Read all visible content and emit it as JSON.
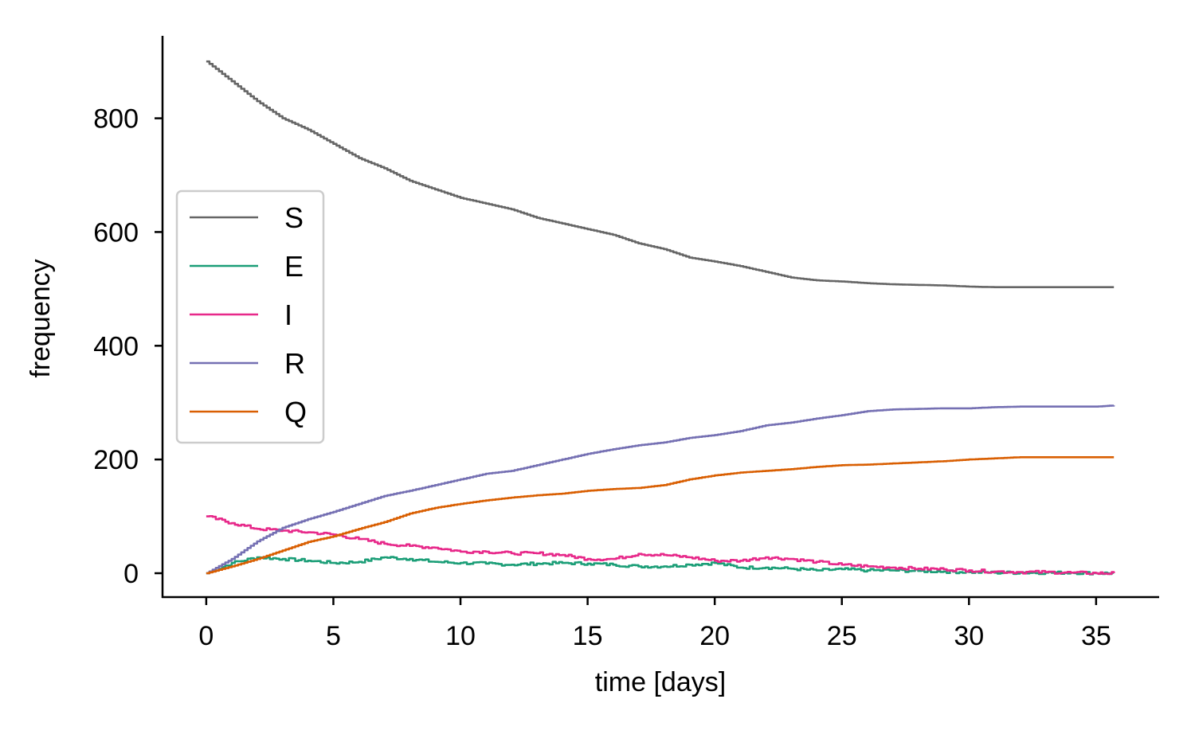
{
  "chart_data": {
    "type": "line",
    "title": "",
    "xlabel": "time [days]",
    "ylabel": "frequency",
    "xlim": [
      -1.72,
      37.48
    ],
    "ylim": [
      -42,
      945
    ],
    "xticks": [
      0,
      5,
      10,
      15,
      20,
      25,
      30,
      35
    ],
    "yticks": [
      0,
      200,
      400,
      600,
      800
    ],
    "grid": false,
    "legend_placement": "center-left",
    "x": [
      0,
      1,
      2,
      3,
      4,
      5,
      6,
      7,
      8,
      9,
      10,
      11,
      12,
      13,
      14,
      15,
      16,
      17,
      18,
      19,
      20,
      21,
      22,
      23,
      24,
      25,
      26,
      27,
      28,
      29,
      30,
      31,
      32,
      33,
      34,
      35,
      35.7
    ],
    "series": [
      {
        "name": "S",
        "color": "#666666",
        "values": [
          900,
          865,
          830,
          800,
          780,
          755,
          730,
          712,
          690,
          675,
          660,
          650,
          640,
          625,
          615,
          605,
          595,
          580,
          570,
          555,
          548,
          540,
          530,
          520,
          515,
          513,
          510,
          508,
          507,
          506,
          504,
          503,
          503,
          503,
          503,
          503,
          503
        ]
      },
      {
        "name": "E",
        "color": "#1b9e77",
        "values": [
          0,
          18,
          28,
          25,
          22,
          18,
          20,
          28,
          25,
          20,
          18,
          17,
          15,
          17,
          18,
          17,
          15,
          12,
          12,
          15,
          18,
          10,
          10,
          8,
          5,
          7,
          5,
          5,
          4,
          3,
          2,
          1,
          1,
          1,
          1,
          0,
          0
        ]
      },
      {
        "name": "I",
        "color": "#e7298a",
        "values": [
          100,
          88,
          78,
          75,
          72,
          68,
          60,
          52,
          48,
          45,
          38,
          38,
          35,
          35,
          32,
          25,
          25,
          34,
          32,
          28,
          22,
          22,
          28,
          25,
          20,
          15,
          12,
          10,
          8,
          7,
          5,
          3,
          2,
          2,
          1,
          0,
          0
        ]
      },
      {
        "name": "R",
        "color": "#7570b3",
        "values": [
          0,
          25,
          56,
          80,
          95,
          108,
          122,
          136,
          145,
          155,
          165,
          175,
          180,
          190,
          200,
          210,
          218,
          225,
          230,
          238,
          243,
          250,
          260,
          265,
          272,
          278,
          285,
          288,
          289,
          290,
          290,
          292,
          293,
          293,
          293,
          293,
          295
        ]
      },
      {
        "name": "Q",
        "color": "#d95f02",
        "values": [
          0,
          12,
          25,
          40,
          55,
          65,
          78,
          90,
          105,
          115,
          122,
          128,
          133,
          137,
          140,
          145,
          148,
          150,
          155,
          165,
          172,
          177,
          180,
          183,
          187,
          190,
          191,
          193,
          195,
          197,
          200,
          202,
          204,
          204,
          204,
          204,
          204
        ]
      }
    ]
  }
}
